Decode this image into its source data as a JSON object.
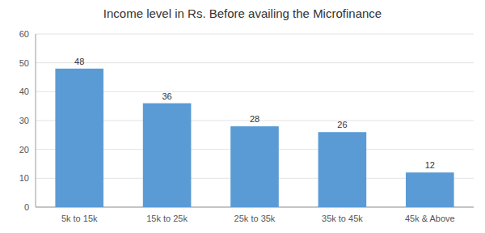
{
  "chart_data": {
    "type": "bar",
    "title": "Income level in Rs. Before availing the Microfinance",
    "categories": [
      "5k to 15k",
      "15k to 25k",
      "25k to 35k",
      "35k to 45k",
      "45k & Above"
    ],
    "values": [
      48,
      36,
      28,
      26,
      12
    ],
    "color": "#5B9BD5",
    "ylim": [
      0,
      60
    ],
    "yticks": [
      0,
      10,
      20,
      30,
      40,
      50,
      60
    ],
    "grid": true,
    "data_labels": true
  }
}
